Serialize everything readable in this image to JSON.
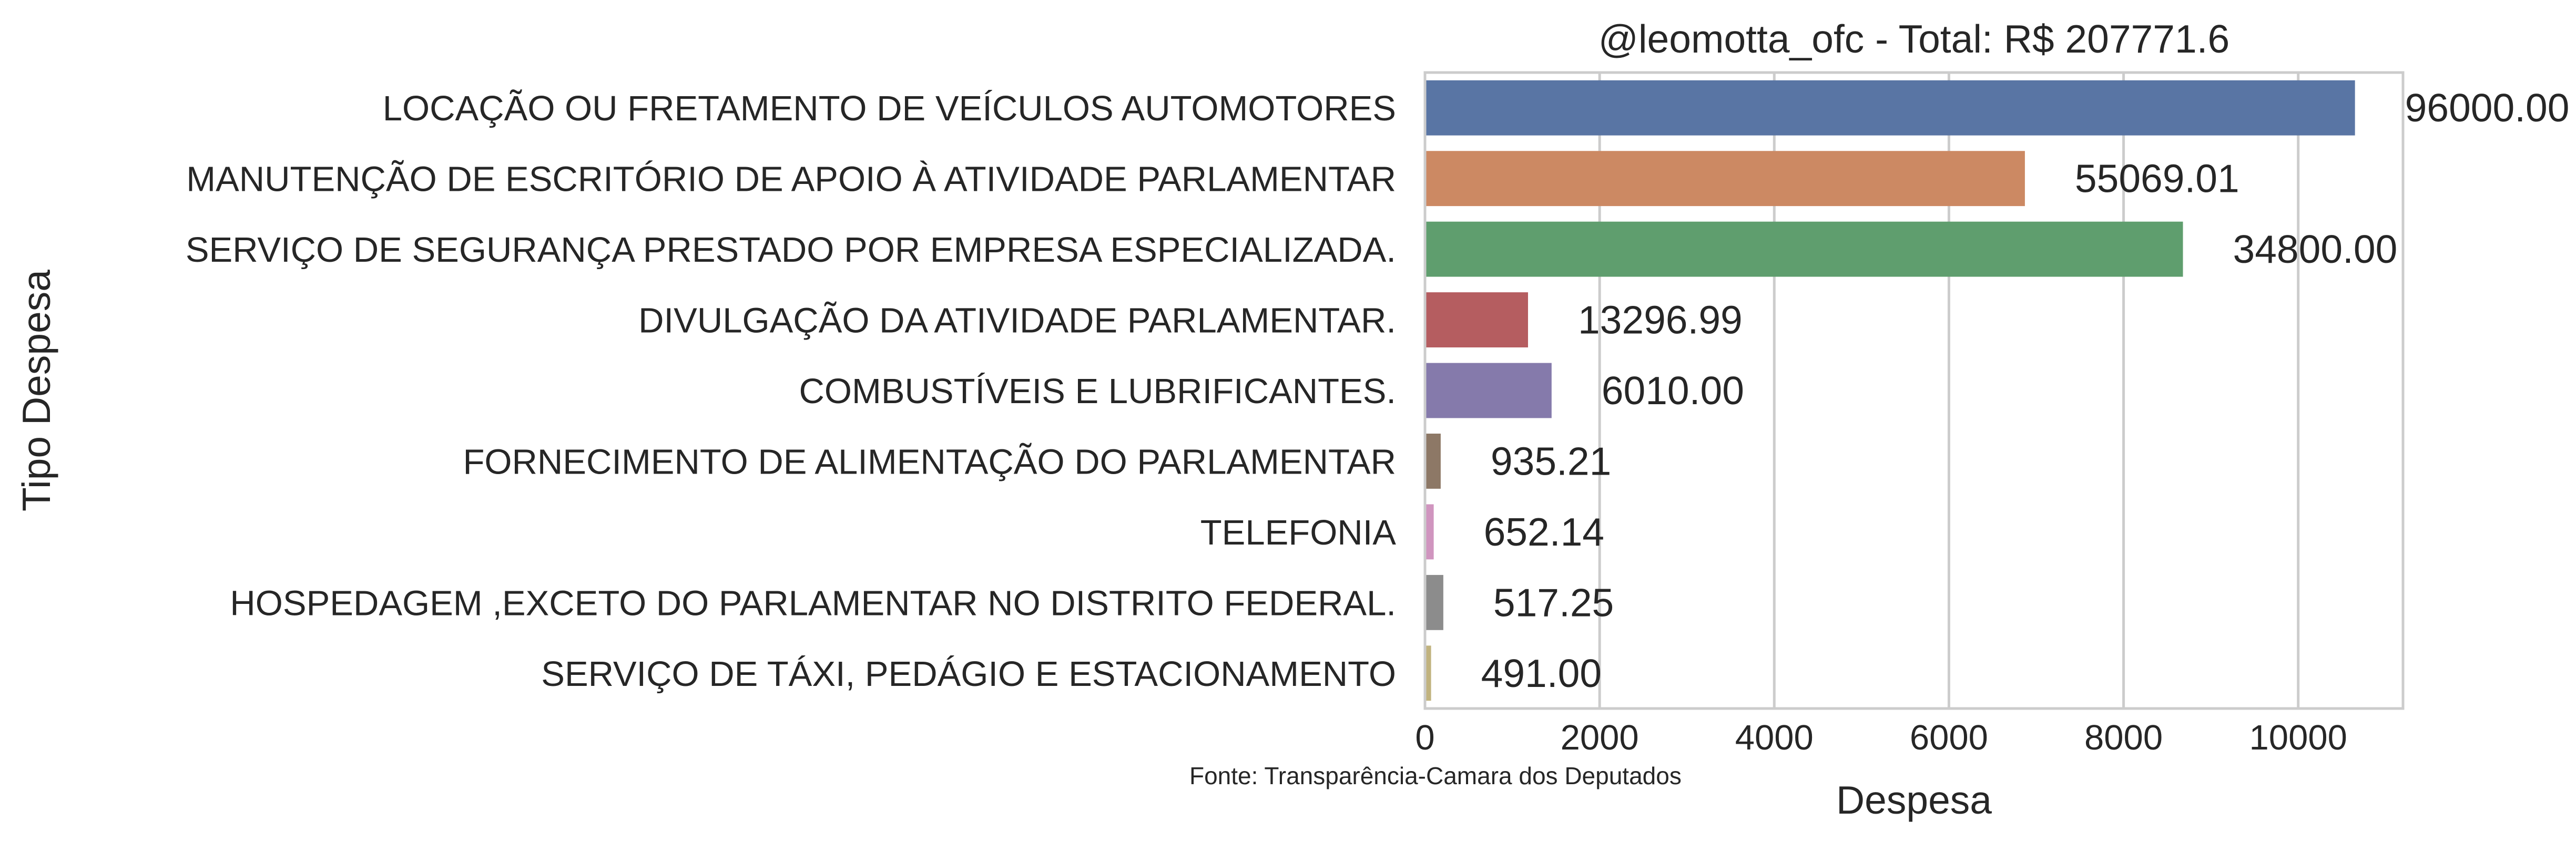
{
  "chart_data": {
    "type": "bar",
    "orientation": "horizontal",
    "title": "@leomotta_ofc - Total: R$ 207771.6",
    "xlabel": "Despesa",
    "ylabel": "Tipo Despesa",
    "footnote": "Fonte: Transparência-Camara dos Deputados",
    "xlim": [
      0,
      11200
    ],
    "xticks": [
      0,
      2000,
      4000,
      6000,
      8000,
      10000
    ],
    "grid": true,
    "categories": [
      "LOCAÇÃO OU FRETAMENTO DE VEÍCULOS AUTOMOTORES",
      "MANUTENÇÃO DE ESCRITÓRIO DE APOIO À ATIVIDADE PARLAMENTAR",
      "SERVIÇO DE SEGURANÇA PRESTADO POR EMPRESA ESPECIALIZADA.",
      "DIVULGAÇÃO DA ATIVIDADE PARLAMENTAR.",
      "COMBUSTÍVEIS E LUBRIFICANTES.",
      "FORNECIMENTO DE ALIMENTAÇÃO DO PARLAMENTAR",
      "TELEFONIA",
      "HOSPEDAGEM ,EXCETO DO PARLAMENTAR NO DISTRITO FEDERAL.",
      "SERVIÇO DE TÁXI, PEDÁGIO E ESTACIONAMENTO"
    ],
    "values": [
      10650,
      6870,
      8680,
      1180,
      1450,
      180,
      100,
      210,
      70
    ],
    "value_labels": [
      "96000.00",
      "55069.01",
      "34800.00",
      "13296.99",
      "6010.00",
      "935.21",
      "652.14",
      "517.25",
      "491.00"
    ],
    "colors": [
      "#5975a4",
      "#cc8963",
      "#5f9e6e",
      "#b55d60",
      "#857aab",
      "#8d7866",
      "#d095bf",
      "#8c8c8c",
      "#c1b37f"
    ]
  }
}
